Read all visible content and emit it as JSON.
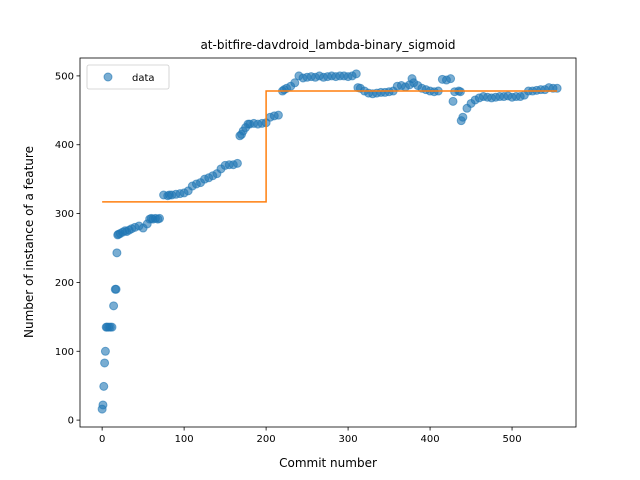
{
  "chart_data": {
    "type": "scatter",
    "title": "at-bitfire-davdroid_lambda-binary_sigmoid",
    "xlabel": "Commit number",
    "ylabel": "Number of instance of a feature",
    "xlim": [
      -27,
      578
    ],
    "ylim": [
      -10,
      526
    ],
    "xticks": [
      0,
      100,
      200,
      300,
      400,
      500
    ],
    "yticks": [
      0,
      100,
      200,
      300,
      400,
      500
    ],
    "grid": false,
    "legend": {
      "placement": "top-left",
      "entries": [
        "data"
      ]
    },
    "colors": {
      "scatter": "#1f77b4",
      "fit": "#ff7f0e"
    },
    "series": [
      {
        "name": "data",
        "kind": "scatter",
        "x": [
          0,
          1,
          2,
          3,
          4,
          5,
          6,
          8,
          10,
          12,
          14,
          16,
          17,
          18,
          19,
          20,
          22,
          25,
          28,
          30,
          33,
          36,
          40,
          45,
          50,
          55,
          58,
          60,
          62,
          65,
          68,
          70,
          75,
          80,
          82,
          85,
          90,
          95,
          100,
          105,
          110,
          115,
          120,
          125,
          130,
          135,
          140,
          145,
          150,
          155,
          160,
          165,
          168,
          170,
          172,
          175,
          178,
          180,
          185,
          190,
          195,
          200,
          205,
          210,
          215,
          220,
          222,
          225,
          230,
          235,
          240,
          245,
          250,
          255,
          260,
          265,
          270,
          275,
          280,
          285,
          290,
          295,
          300,
          305,
          310,
          312,
          315,
          320,
          325,
          330,
          335,
          340,
          345,
          350,
          355,
          360,
          365,
          370,
          375,
          378,
          380,
          385,
          390,
          395,
          400,
          405,
          410,
          415,
          420,
          425,
          428,
          430,
          435,
          437,
          438,
          440,
          445,
          450,
          455,
          460,
          465,
          470,
          475,
          480,
          485,
          490,
          495,
          500,
          505,
          510,
          515,
          520,
          525,
          530,
          535,
          540,
          545,
          550,
          555
        ],
        "y": [
          16,
          22,
          49,
          83,
          100,
          135,
          135,
          135,
          135,
          135,
          166,
          190,
          190,
          243,
          269,
          270,
          271,
          273,
          275,
          274,
          276,
          278,
          280,
          282,
          279,
          285,
          292,
          293,
          292,
          293,
          292,
          293,
          327,
          326,
          327,
          327,
          328,
          329,
          330,
          333,
          340,
          343,
          345,
          350,
          352,
          355,
          358,
          365,
          370,
          371,
          371,
          373,
          413,
          415,
          420,
          425,
          430,
          430,
          431,
          430,
          431,
          432,
          440,
          442,
          443,
          478,
          480,
          482,
          485,
          490,
          500,
          497,
          498,
          499,
          498,
          500,
          498,
          499,
          500,
          499,
          500,
          500,
          499,
          500,
          503,
          483,
          482,
          478,
          475,
          474,
          475,
          476,
          476,
          477,
          478,
          485,
          486,
          484,
          487,
          496,
          490,
          486,
          482,
          480,
          478,
          477,
          478,
          495,
          494,
          496,
          463,
          477,
          478,
          477,
          435,
          440,
          453,
          460,
          465,
          468,
          470,
          469,
          468,
          469,
          470,
          470,
          471,
          469,
          470,
          470,
          472,
          478,
          478,
          479,
          480,
          480,
          483,
          482,
          482
        ]
      },
      {
        "name": "",
        "kind": "step",
        "segments": [
          {
            "x0": 0,
            "x1": 200,
            "y": 317
          },
          {
            "x0": 200,
            "x1": 555,
            "y": 478
          }
        ]
      }
    ]
  }
}
